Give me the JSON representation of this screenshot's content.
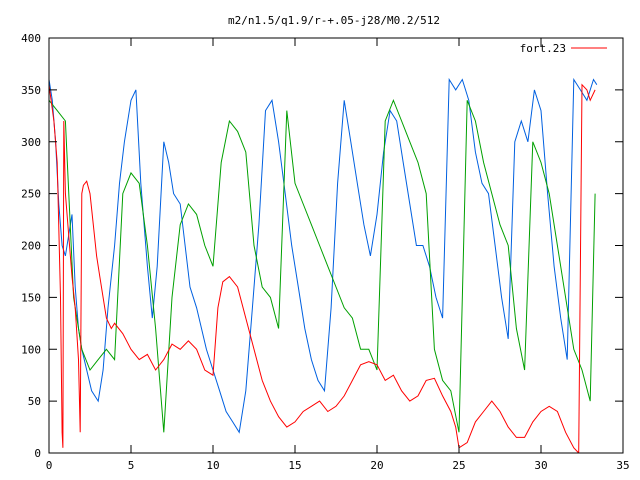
{
  "chart_data": {
    "type": "line",
    "title": "m2/n1.5/q1.9/r-+.05-j28/M0.2/512",
    "xlabel": "",
    "ylabel": "",
    "xlim": [
      0,
      35
    ],
    "ylim": [
      0,
      400
    ],
    "x_ticks": [
      "0",
      "5",
      "10",
      "15",
      "20",
      "25",
      "30",
      "35"
    ],
    "y_ticks": [
      "0",
      "50",
      "100",
      "150",
      "200",
      "250",
      "300",
      "350",
      "400"
    ],
    "grid": false,
    "legend_position": "top-right",
    "series": [
      {
        "name": "fort.23",
        "color": "#ff0000",
        "x": [
          0.0,
          0.3,
          0.5,
          0.7,
          0.8,
          0.85,
          0.9,
          1.0,
          1.2,
          1.4,
          1.6,
          1.8,
          1.9,
          2.0,
          2.1,
          2.3,
          2.5,
          2.7,
          2.9,
          3.1,
          3.3,
          3.5,
          3.8,
          4.0,
          4.5,
          5.0,
          5.5,
          6.0,
          6.5,
          7.0,
          7.5,
          8.0,
          8.5,
          9.0,
          9.5,
          10.0,
          10.3,
          10.6,
          11.0,
          11.5,
          12.0,
          12.5,
          13.0,
          13.5,
          14.0,
          14.5,
          15.0,
          15.5,
          16.0,
          16.5,
          17.0,
          17.5,
          18.0,
          18.5,
          19.0,
          19.5,
          20.0,
          20.5,
          21.0,
          21.5,
          22.0,
          22.5,
          23.0,
          23.5,
          24.0,
          24.5,
          24.8,
          25.0,
          25.5,
          26.0,
          26.5,
          27.0,
          27.5,
          28.0,
          28.5,
          29.0,
          29.5,
          30.0,
          30.5,
          31.0,
          31.5,
          32.0,
          32.3,
          32.5,
          32.8,
          33.0,
          33.3
        ],
        "values": [
          355,
          320,
          280,
          150,
          20,
          5,
          320,
          250,
          210,
          170,
          140,
          90,
          20,
          250,
          258,
          262,
          250,
          220,
          190,
          170,
          150,
          130,
          120,
          125,
          115,
          100,
          90,
          95,
          80,
          90,
          105,
          100,
          108,
          100,
          80,
          75,
          140,
          165,
          170,
          160,
          130,
          100,
          70,
          50,
          35,
          25,
          30,
          40,
          45,
          50,
          40,
          45,
          55,
          70,
          85,
          88,
          85,
          70,
          75,
          60,
          50,
          55,
          70,
          72,
          55,
          40,
          25,
          5,
          10,
          30,
          40,
          50,
          40,
          25,
          15,
          15,
          30,
          40,
          45,
          40,
          20,
          5,
          0,
          355,
          350,
          340,
          350
        ]
      }
    ],
    "unlabeled_series": [
      {
        "color": "#0060e0",
        "x": [
          0.0,
          0.2,
          0.4,
          0.6,
          0.8,
          1.0,
          1.2,
          1.4,
          1.6,
          1.8,
          2.0,
          2.3,
          2.6,
          3.0,
          3.3,
          3.6,
          4.0,
          4.3,
          4.6,
          5.0,
          5.3,
          5.6,
          6.0,
          6.3,
          6.6,
          7.0,
          7.3,
          7.6,
          8.0,
          8.3,
          8.6,
          9.0,
          9.3,
          9.6,
          10.0,
          10.4,
          10.8,
          11.2,
          11.6,
          12.0,
          12.4,
          12.8,
          13.2,
          13.6,
          14.0,
          14.4,
          14.8,
          15.2,
          15.6,
          16.0,
          16.4,
          16.8,
          17.2,
          17.6,
          18.0,
          18.4,
          18.8,
          19.2,
          19.6,
          20.0,
          20.4,
          20.8,
          21.2,
          21.6,
          22.0,
          22.4,
          22.8,
          23.2,
          23.6,
          24.0,
          24.4,
          24.8,
          25.2,
          25.6,
          26.0,
          26.4,
          26.8,
          27.2,
          27.6,
          28.0,
          28.4,
          28.8,
          29.2,
          29.6,
          30.0,
          30.4,
          30.8,
          31.2,
          31.6,
          32.0,
          32.4,
          32.8,
          33.2,
          33.4
        ],
        "values": [
          360,
          340,
          300,
          240,
          200,
          190,
          210,
          230,
          160,
          120,
          100,
          80,
          60,
          50,
          80,
          140,
          200,
          260,
          300,
          340,
          350,
          260,
          180,
          130,
          180,
          300,
          280,
          250,
          240,
          200,
          160,
          140,
          120,
          100,
          80,
          60,
          40,
          30,
          20,
          60,
          140,
          220,
          330,
          340,
          300,
          250,
          200,
          160,
          120,
          90,
          70,
          60,
          140,
          260,
          340,
          300,
          260,
          220,
          190,
          230,
          290,
          330,
          320,
          280,
          240,
          200,
          200,
          180,
          150,
          130,
          360,
          350,
          360,
          340,
          290,
          260,
          250,
          200,
          150,
          110,
          300,
          320,
          300,
          350,
          330,
          250,
          180,
          130,
          90,
          360,
          350,
          340,
          360,
          355
        ]
      },
      {
        "color": "#00a000",
        "x": [
          0.0,
          0.5,
          1.0,
          1.5,
          2.0,
          2.5,
          3.0,
          3.5,
          4.0,
          4.5,
          5.0,
          5.5,
          6.0,
          6.5,
          7.0,
          7.5,
          8.0,
          8.5,
          9.0,
          9.5,
          10.0,
          10.5,
          11.0,
          11.5,
          12.0,
          12.5,
          13.0,
          13.5,
          14.0,
          14.5,
          15.0,
          15.5,
          16.0,
          16.5,
          17.0,
          17.5,
          18.0,
          18.5,
          19.0,
          19.5,
          20.0,
          20.5,
          21.0,
          21.5,
          22.0,
          22.5,
          23.0,
          23.5,
          24.0,
          24.5,
          25.0,
          25.5,
          26.0,
          26.5,
          27.0,
          27.5,
          28.0,
          28.5,
          29.0,
          29.5,
          30.0,
          30.5,
          31.0,
          31.5,
          32.0,
          32.5,
          33.0,
          33.3
        ],
        "values": [
          340,
          330,
          320,
          150,
          100,
          80,
          90,
          100,
          90,
          250,
          270,
          260,
          200,
          120,
          20,
          150,
          220,
          240,
          230,
          200,
          180,
          280,
          320,
          310,
          290,
          200,
          160,
          150,
          120,
          330,
          260,
          240,
          220,
          200,
          180,
          160,
          140,
          130,
          100,
          100,
          80,
          320,
          340,
          320,
          300,
          280,
          250,
          100,
          70,
          60,
          20,
          340,
          320,
          280,
          250,
          220,
          200,
          120,
          80,
          300,
          280,
          250,
          200,
          150,
          100,
          80,
          50,
          250
        ]
      }
    ]
  }
}
